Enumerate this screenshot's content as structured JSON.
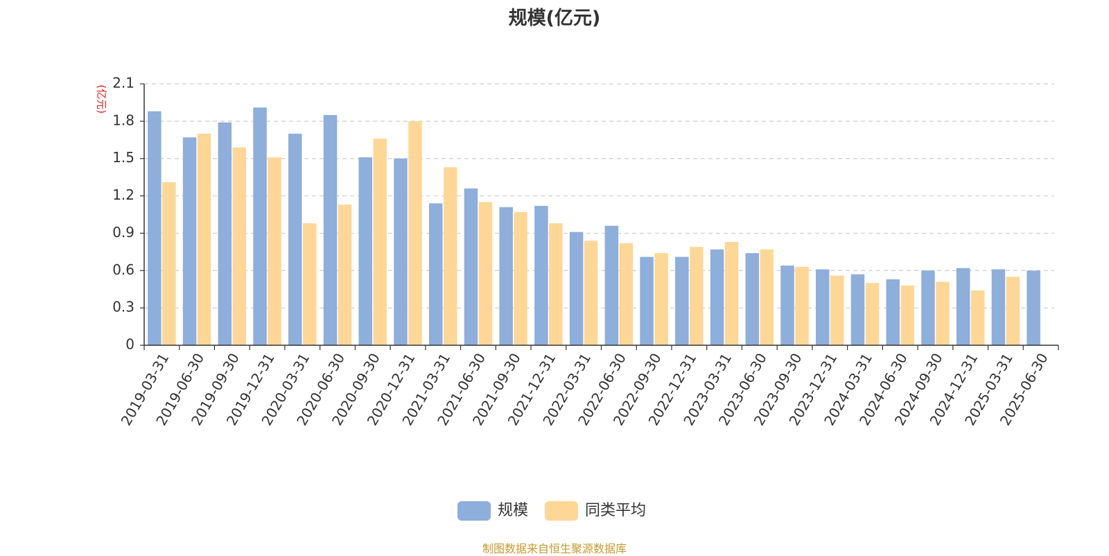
{
  "chart_data": {
    "type": "bar",
    "title": "规模(亿元)",
    "ylabel": "(亿元)",
    "xlabel": "",
    "ylim": [
      0,
      2.1
    ],
    "yticks": [
      "0",
      "0.3",
      "0.6",
      "0.9",
      "1.2",
      "1.5",
      "1.8",
      "2.1"
    ],
    "grid": true,
    "legend_position": "bottom",
    "categories": [
      "2019-03-31",
      "2019-06-30",
      "2019-09-30",
      "2019-12-31",
      "2020-03-31",
      "2020-06-30",
      "2020-09-30",
      "2020-12-31",
      "2021-03-31",
      "2021-06-30",
      "2021-09-30",
      "2021-12-31",
      "2022-03-31",
      "2022-06-30",
      "2022-09-30",
      "2022-12-31",
      "2023-03-31",
      "2023-06-30",
      "2023-09-30",
      "2023-12-31",
      "2024-03-31",
      "2024-06-30",
      "2024-09-30",
      "2024-12-31",
      "2025-03-31",
      "2025-06-30"
    ],
    "series": [
      {
        "name": "规模",
        "color": "#8eaedb",
        "values": [
          1.88,
          1.67,
          1.79,
          1.91,
          1.7,
          1.85,
          1.51,
          1.5,
          1.14,
          1.26,
          1.11,
          1.12,
          0.91,
          0.96,
          0.71,
          0.71,
          0.77,
          0.74,
          0.64,
          0.61,
          0.57,
          0.53,
          0.6,
          0.62,
          0.61,
          0.6
        ]
      },
      {
        "name": "同类平均",
        "color": "#fed797",
        "values": [
          1.31,
          1.7,
          1.59,
          1.51,
          0.98,
          1.13,
          1.66,
          1.8,
          1.43,
          1.15,
          1.07,
          0.98,
          0.84,
          0.82,
          0.74,
          0.79,
          0.83,
          0.77,
          0.63,
          0.56,
          0.5,
          0.48,
          0.51,
          0.44,
          0.55,
          null
        ]
      }
    ]
  },
  "source_note": "制图数据来自恒生聚源数据库",
  "colors": {
    "axis": "#333333",
    "grid": "#cccccc",
    "ylabel": "#e02020"
  }
}
